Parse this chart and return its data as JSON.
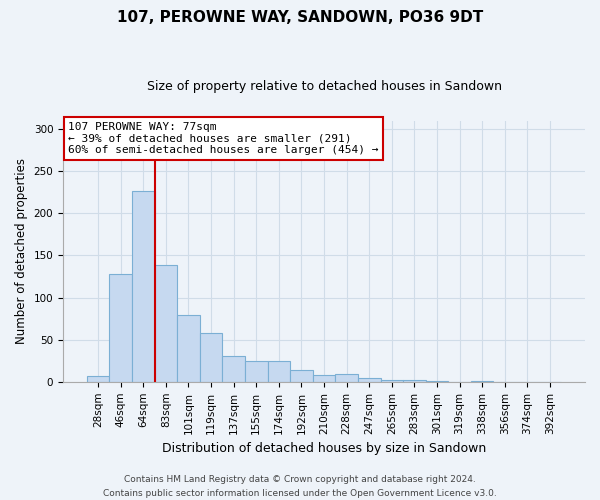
{
  "title": "107, PEROWNE WAY, SANDOWN, PO36 9DT",
  "subtitle": "Size of property relative to detached houses in Sandown",
  "xlabel": "Distribution of detached houses by size in Sandown",
  "ylabel": "Number of detached properties",
  "bar_labels": [
    "28sqm",
    "46sqm",
    "64sqm",
    "83sqm",
    "101sqm",
    "119sqm",
    "137sqm",
    "155sqm",
    "174sqm",
    "192sqm",
    "210sqm",
    "228sqm",
    "247sqm",
    "265sqm",
    "283sqm",
    "301sqm",
    "319sqm",
    "338sqm",
    "356sqm",
    "374sqm",
    "392sqm"
  ],
  "bar_values": [
    7,
    128,
    226,
    139,
    79,
    58,
    31,
    25,
    25,
    14,
    8,
    9,
    5,
    2,
    2,
    1,
    0,
    1,
    0,
    0,
    0
  ],
  "bar_color": "#c6d9f0",
  "bar_edge_color": "#7bafd4",
  "vline_color": "#cc0000",
  "vline_x_idx": 2,
  "ylim": [
    0,
    310
  ],
  "yticks": [
    0,
    50,
    100,
    150,
    200,
    250,
    300
  ],
  "annotation_line1": "107 PEROWNE WAY: 77sqm",
  "annotation_line2": "← 39% of detached houses are smaller (291)",
  "annotation_line3": "60% of semi-detached houses are larger (454) →",
  "annotation_box_color": "white",
  "annotation_box_edge": "#cc0000",
  "footer_line1": "Contains HM Land Registry data © Crown copyright and database right 2024.",
  "footer_line2": "Contains public sector information licensed under the Open Government Licence v3.0.",
  "grid_color": "#d0dce8",
  "background_color": "#eef3f9",
  "title_fontsize": 11,
  "subtitle_fontsize": 9,
  "ylabel_fontsize": 8.5,
  "xlabel_fontsize": 9,
  "tick_fontsize": 7.5
}
